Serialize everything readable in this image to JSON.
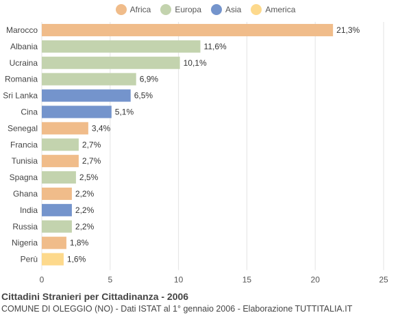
{
  "chart_data": {
    "type": "bar",
    "orientation": "horizontal",
    "title": "Cittadini Stranieri per Cittadinanza - 2006",
    "subtitle": "COMUNE DI OLEGGIO (NO) - Dati ISTAT al 1° gennaio 2006 - Elaborazione TUTTITALIA.IT",
    "xlim": [
      0,
      25
    ],
    "xticks": [
      "0",
      "5",
      "10",
      "15",
      "20",
      "25"
    ],
    "grid": true,
    "legend_position": "top-center",
    "legend": [
      {
        "name": "Africa",
        "color": "#f0bc8a"
      },
      {
        "name": "Europa",
        "color": "#c3d3ae"
      },
      {
        "name": "Asia",
        "color": "#7494cc"
      },
      {
        "name": "America",
        "color": "#fdd98c"
      }
    ],
    "bars": [
      {
        "category": "Marocco",
        "value": 21.3,
        "label": "21,3%",
        "group": "Africa"
      },
      {
        "category": "Albania",
        "value": 11.6,
        "label": "11,6%",
        "group": "Europa"
      },
      {
        "category": "Ucraina",
        "value": 10.1,
        "label": "10,1%",
        "group": "Europa"
      },
      {
        "category": "Romania",
        "value": 6.9,
        "label": "6,9%",
        "group": "Europa"
      },
      {
        "category": "Sri Lanka",
        "value": 6.5,
        "label": "6,5%",
        "group": "Asia"
      },
      {
        "category": "Cina",
        "value": 5.1,
        "label": "5,1%",
        "group": "Asia"
      },
      {
        "category": "Senegal",
        "value": 3.4,
        "label": "3,4%",
        "group": "Africa"
      },
      {
        "category": "Francia",
        "value": 2.7,
        "label": "2,7%",
        "group": "Europa"
      },
      {
        "category": "Tunisia",
        "value": 2.7,
        "label": "2,7%",
        "group": "Africa"
      },
      {
        "category": "Spagna",
        "value": 2.5,
        "label": "2,5%",
        "group": "Europa"
      },
      {
        "category": "Ghana",
        "value": 2.2,
        "label": "2,2%",
        "group": "Africa"
      },
      {
        "category": "India",
        "value": 2.2,
        "label": "2,2%",
        "group": "Asia"
      },
      {
        "category": "Russia",
        "value": 2.2,
        "label": "2,2%",
        "group": "Europa"
      },
      {
        "category": "Nigeria",
        "value": 1.8,
        "label": "1,8%",
        "group": "Africa"
      },
      {
        "category": "Perù",
        "value": 1.6,
        "label": "1,6%",
        "group": "America"
      }
    ]
  }
}
